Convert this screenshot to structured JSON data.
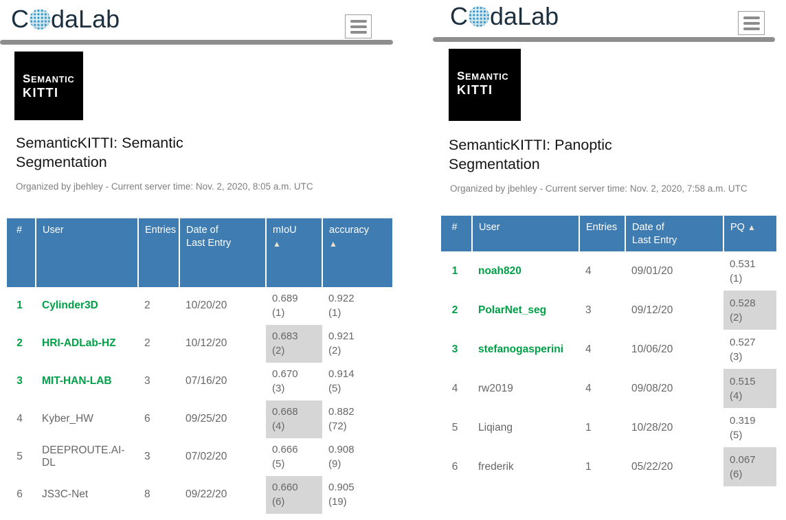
{
  "colors": {
    "header_blue": "#3e7cb2",
    "rank_green": "#00a046",
    "highlight_gray": "#d6d6d6",
    "brand_navy": "#1b2f3f",
    "divider_gray": "#8e8e8e"
  },
  "left": {
    "brand": {
      "prefix": "C",
      "suffix": "daLab"
    },
    "kitti_logo": {
      "word1_first": "S",
      "word1_rest": "EMANTIC",
      "word2": "KITTI"
    },
    "title": "SemanticKITTI: Semantic Segmentation",
    "organized": "Organized by jbehley - Current server time: Nov. 2, 2020, 8:05 a.m. UTC",
    "table": {
      "headers": {
        "rank": "#",
        "user": "User",
        "entries": "Entries",
        "date_line1": "Date of",
        "date_line2": "Last Entry",
        "score1": "mIoU",
        "score2": "accuracy",
        "sort_arrow": "▲"
      },
      "rows": [
        {
          "rank": "1",
          "user": "Cylinder3D",
          "entries": "2",
          "date": "10/20/20",
          "s1": "0.689",
          "s1r": "(1)",
          "s2": "0.922",
          "s2r": "(1)"
        },
        {
          "rank": "2",
          "user": "HRI-ADLab-HZ",
          "entries": "2",
          "date": "10/12/20",
          "s1": "0.683",
          "s1r": "(2)",
          "s2": "0.921",
          "s2r": "(2)"
        },
        {
          "rank": "3",
          "user": "MIT-HAN-LAB",
          "entries": "3",
          "date": "07/16/20",
          "s1": "0.670",
          "s1r": "(3)",
          "s2": "0.914",
          "s2r": "(5)"
        },
        {
          "rank": "4",
          "user": "Kyber_HW",
          "entries": "6",
          "date": "09/25/20",
          "s1": "0.668",
          "s1r": "(4)",
          "s2": "0.882",
          "s2r": "(72)"
        },
        {
          "rank": "5",
          "user": "DEEPROUTE.AI-DL",
          "entries": "3",
          "date": "07/02/20",
          "s1": "0.666",
          "s1r": "(5)",
          "s2": "0.908",
          "s2r": "(9)"
        },
        {
          "rank": "6",
          "user": "JS3C-Net",
          "entries": "8",
          "date": "09/22/20",
          "s1": "0.660",
          "s1r": "(6)",
          "s2": "0.905",
          "s2r": "(19)"
        }
      ]
    }
  },
  "right": {
    "brand": {
      "prefix": "C",
      "suffix": "daLab"
    },
    "kitti_logo": {
      "word1_first": "S",
      "word1_rest": "EMANTIC",
      "word2": "KITTI"
    },
    "title": "SemanticKITTI: Panoptic Segmentation",
    "organized": "Organized by jbehley - Current server time: Nov. 2, 2020, 7:58 a.m. UTC",
    "table": {
      "headers": {
        "rank": "#",
        "user": "User",
        "entries": "Entries",
        "date_line1": "Date of",
        "date_line2": "Last Entry",
        "score1": "PQ",
        "sort_arrow": "▲"
      },
      "rows": [
        {
          "rank": "1",
          "user": "noah820",
          "entries": "4",
          "date": "09/01/20",
          "s1": "0.531",
          "s1r": "(1)"
        },
        {
          "rank": "2",
          "user": "PolarNet_seg",
          "entries": "3",
          "date": "09/12/20",
          "s1": "0.528",
          "s1r": "(2)"
        },
        {
          "rank": "3",
          "user": "stefanogasperini",
          "entries": "4",
          "date": "10/06/20",
          "s1": "0.527",
          "s1r": "(3)"
        },
        {
          "rank": "4",
          "user": "rw2019",
          "entries": "4",
          "date": "09/08/20",
          "s1": "0.515",
          "s1r": "(4)"
        },
        {
          "rank": "5",
          "user": "Liqiang",
          "entries": "1",
          "date": "10/28/20",
          "s1": "0.319",
          "s1r": "(5)"
        },
        {
          "rank": "6",
          "user": "frederik",
          "entries": "1",
          "date": "05/22/20",
          "s1": "0.067",
          "s1r": "(6)"
        }
      ]
    }
  }
}
